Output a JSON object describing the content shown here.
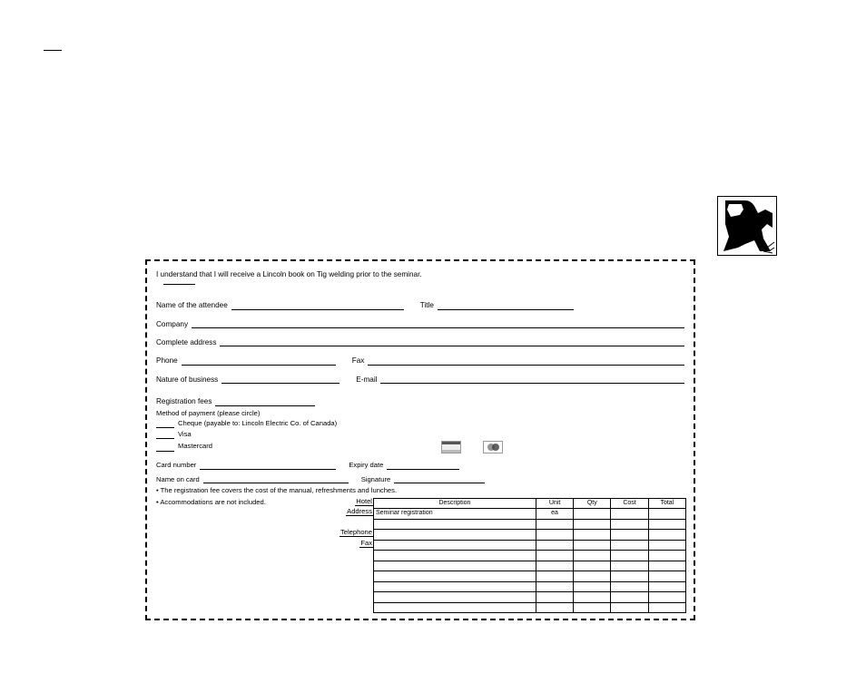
{
  "form": {
    "topLine": "I understand that I will receive a Lincoln book on Tig welding prior to the seminar.",
    "row1": {
      "prefix": "Name of the attendee",
      "after": "Title"
    },
    "row2": {
      "prefix": "Company"
    },
    "row3": {
      "prefix": "Complete address"
    },
    "row4": {
      "prefix": "Phone",
      "after": "Fax"
    },
    "row5": {
      "prefix": "Nature of business",
      "after": "E-mail"
    },
    "payment": {
      "heading": "Registration fees",
      "method": "Method of payment (please circle)",
      "opt1": "Cheque  (payable to: Lincoln Electric Co. of Canada)",
      "opt2": "Visa",
      "opt3": "Mastercard",
      "cardNo": "Card number",
      "exp": "Expiry date",
      "name": "Name on card",
      "sig": "Signature"
    },
    "notes": {
      "n1": "• The registration fee covers the cost of the manual, refreshments and lunches.",
      "n2": "• Accommodations are not included."
    },
    "leftLabels": [
      "Hotel",
      "Address",
      "",
      "Telephone",
      "Fax",
      ""
    ],
    "table": {
      "cols": [
        "Description",
        "Unit",
        "Qty",
        "Cost",
        "Total"
      ],
      "rows": [
        [
          "Seminar registration",
          "ea",
          "",
          "",
          ""
        ],
        [
          "",
          "",
          "",
          "",
          ""
        ],
        [
          "",
          "",
          "",
          "",
          ""
        ],
        [
          "",
          "",
          "",
          "",
          ""
        ],
        [
          "",
          "",
          "",
          "",
          ""
        ],
        [
          "",
          "",
          "",
          "",
          ""
        ],
        [
          "",
          "",
          "",
          "",
          ""
        ],
        [
          "",
          "",
          "",
          "",
          ""
        ],
        [
          "",
          "",
          "",
          "",
          ""
        ],
        [
          "",
          "",
          "",
          "",
          ""
        ]
      ]
    }
  }
}
